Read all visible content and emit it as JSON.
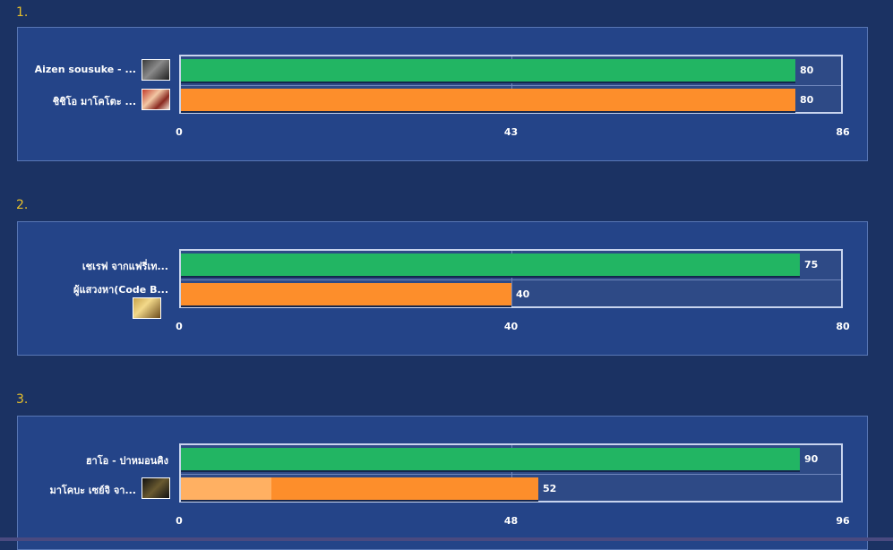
{
  "chart_data": [
    {
      "type": "bar",
      "orientation": "horizontal",
      "number": "1.",
      "categories": [
        "Aizen sousuke - ...",
        "ชิชิโอ มาโคโตะ  ..."
      ],
      "values": [
        80,
        80
      ],
      "colors": [
        "#22b563",
        "#fd8e2b"
      ],
      "xlim": [
        0,
        86
      ],
      "ticks": [
        "0",
        "43",
        "86"
      ],
      "avatars": [
        "av1",
        "av2"
      ]
    },
    {
      "type": "bar",
      "orientation": "horizontal",
      "number": "2.",
      "categories": [
        "เชเรฟ จากแฟรี่เท...",
        "ผู้แสวงหา(Code B..."
      ],
      "values": [
        75,
        40
      ],
      "colors": [
        "#22b563",
        "#fd8e2b"
      ],
      "xlim": [
        0,
        80
      ],
      "ticks": [
        "0",
        "40",
        "80"
      ],
      "avatars": [
        "",
        "av3"
      ]
    },
    {
      "type": "bar",
      "orientation": "horizontal",
      "number": "3.",
      "categories": [
        "ฮาโอ - ปาหมอนคิง",
        "มาโคบะ เซย์จิ จา..."
      ],
      "values": [
        90,
        52
      ],
      "colors": [
        "#22b563",
        "#fd8e2b"
      ],
      "xlim": [
        0,
        96
      ],
      "ticks": [
        "0",
        "48",
        "96"
      ],
      "avatars": [
        "",
        "av4"
      ]
    }
  ]
}
